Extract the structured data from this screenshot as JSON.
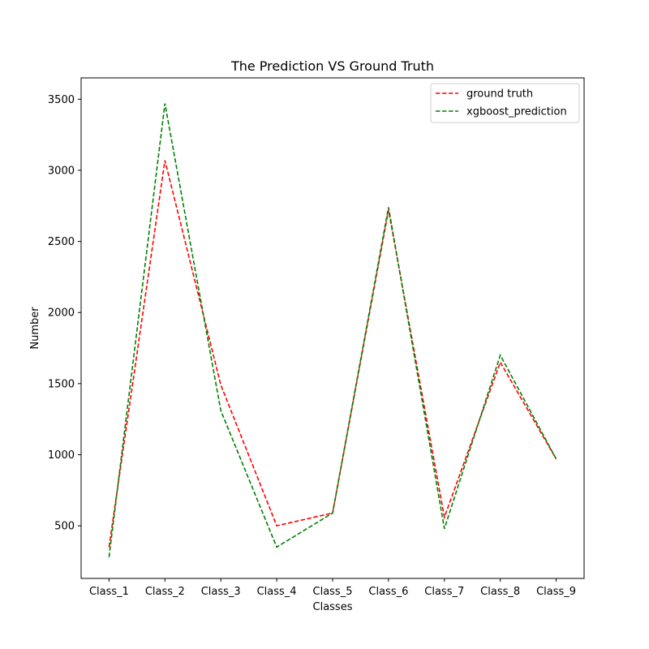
{
  "chart_data": {
    "type": "line",
    "title": "The Prediction VS Ground Truth",
    "xlabel": "Classes",
    "ylabel": "Number",
    "categories": [
      "Class_1",
      "Class_2",
      "Class_3",
      "Class_4",
      "Class_5",
      "Class_6",
      "Class_7",
      "Class_8",
      "Class_9"
    ],
    "ylim": [
      130,
      3650
    ],
    "yticks": [
      500,
      1000,
      1500,
      2000,
      2500,
      3000,
      3500
    ],
    "grid": false,
    "legend": "top-right",
    "series": [
      {
        "name": "ground truth",
        "color": "#ff0000",
        "style": "dashed",
        "values": [
          350,
          3070,
          1490,
          500,
          590,
          2720,
          560,
          1650,
          970
        ]
      },
      {
        "name": "xgboost_prediction",
        "color": "#008000",
        "style": "dashed",
        "values": [
          280,
          3470,
          1310,
          350,
          590,
          2740,
          480,
          1700,
          970
        ]
      }
    ]
  }
}
